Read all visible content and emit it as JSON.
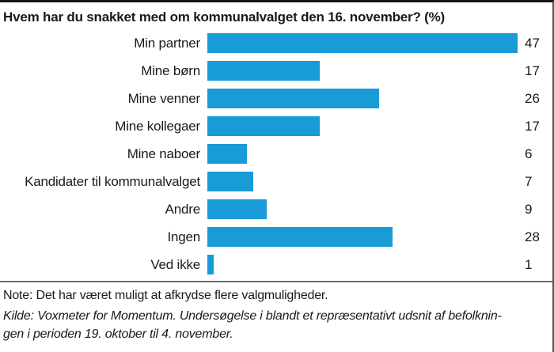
{
  "title": "Hvem har du snakket med om kommunalvalget den 16. november? (%)",
  "chart_data": {
    "type": "bar",
    "orientation": "horizontal",
    "title": "Hvem har du snakket med om kommunalvalget den 16. november? (%)",
    "categories": [
      "Min partner",
      "Mine børn",
      "Mine venner",
      "Mine kollegaer",
      "Mine naboer",
      "Kandidater til kommunalvalget",
      "Andre",
      "Ingen",
      "Ved ikke"
    ],
    "values": [
      47,
      17,
      26,
      17,
      6,
      7,
      9,
      28,
      1
    ],
    "xlabel": "",
    "ylabel": "",
    "xlim": [
      0,
      47
    ],
    "grid": false,
    "legend": false,
    "value_labels_shown": true,
    "bar_color": "#189bd7"
  },
  "footer": {
    "note": "Note: Det har været muligt at afkrydse flere valgmuligheder.",
    "kilde_line1": "Kilde: Voxmeter for Momentum. Undersøgelse i blandt et repræsentativt udsnit af befolknin-",
    "kilde_line2": "gen i perioden 19. oktober til 4. november."
  },
  "colors": {
    "bar": "#189bd7",
    "top_border": "#151515",
    "right_border": "#4a594f",
    "separator": "#6f6f6f",
    "text": "#1a1a1a"
  }
}
